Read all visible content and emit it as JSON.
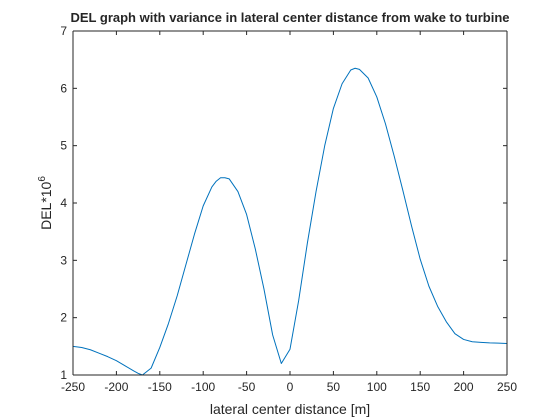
{
  "chart_data": {
    "type": "line",
    "title": "DEL graph with variance in lateral center distance from wake to turbine",
    "xlabel": "lateral center distance [m]",
    "ylabel": "DEL*10",
    "ylabel_exponent": "6",
    "xlim": [
      -250,
      250
    ],
    "ylim": [
      1,
      7
    ],
    "x_ticks": [
      "-250",
      "-200",
      "-150",
      "-100",
      "-50",
      "0",
      "50",
      "100",
      "150",
      "200",
      "250"
    ],
    "y_ticks": [
      "1",
      "2",
      "3",
      "4",
      "5",
      "6",
      "7"
    ],
    "grid": false,
    "box": true,
    "series": [
      {
        "color": "#0072BD",
        "x": [
          -250,
          -240,
          -230,
          -220,
          -210,
          -200,
          -190,
          -180,
          -175,
          -170,
          -160,
          -150,
          -140,
          -130,
          -120,
          -110,
          -100,
          -90,
          -85,
          -80,
          -75,
          -70,
          -60,
          -50,
          -40,
          -30,
          -20,
          -10,
          0,
          10,
          20,
          30,
          40,
          50,
          60,
          70,
          75,
          80,
          90,
          100,
          110,
          120,
          130,
          140,
          150,
          160,
          170,
          180,
          190,
          200,
          210,
          220,
          230,
          240,
          250
        ],
        "y": [
          1.5,
          1.48,
          1.44,
          1.38,
          1.32,
          1.25,
          1.16,
          1.07,
          1.03,
          1.0,
          1.12,
          1.48,
          1.9,
          2.38,
          2.92,
          3.46,
          3.95,
          4.28,
          4.38,
          4.44,
          4.44,
          4.42,
          4.2,
          3.8,
          3.2,
          2.5,
          1.7,
          1.2,
          1.45,
          2.3,
          3.3,
          4.2,
          5.0,
          5.65,
          6.08,
          6.32,
          6.35,
          6.33,
          6.18,
          5.85,
          5.38,
          4.82,
          4.22,
          3.6,
          3.02,
          2.55,
          2.2,
          1.93,
          1.72,
          1.62,
          1.58,
          1.57,
          1.56,
          1.555,
          1.55
        ]
      }
    ]
  }
}
